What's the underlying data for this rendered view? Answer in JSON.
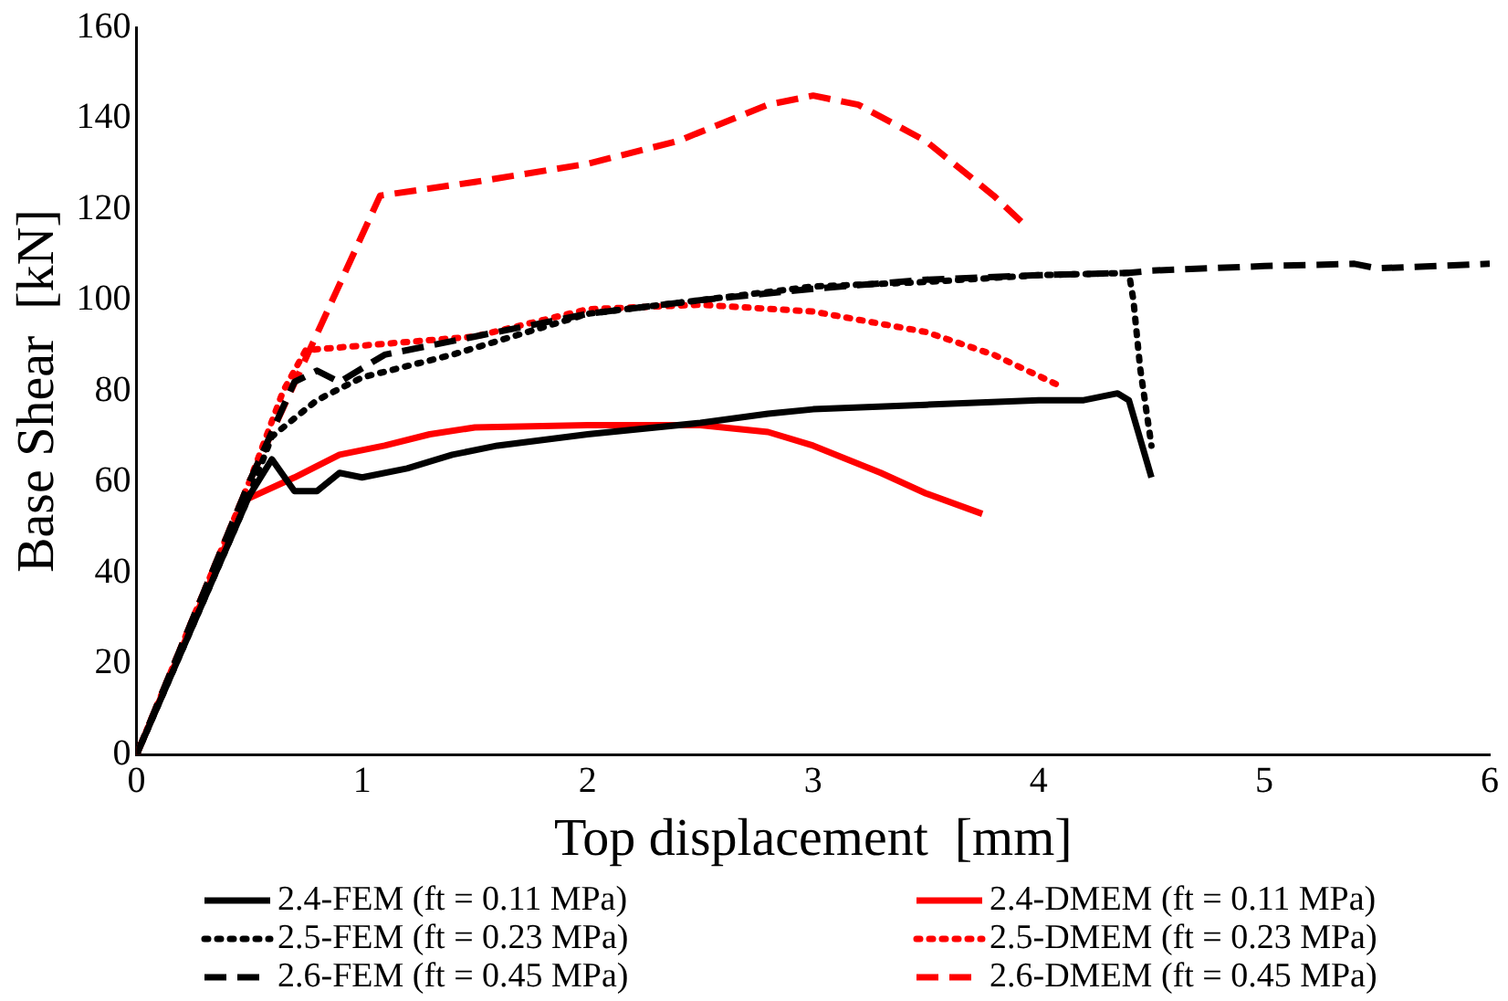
{
  "chart_data": {
    "type": "line",
    "xlabel": "Top displacement  [mm]",
    "ylabel": "Base Shear  [kN]",
    "xlim": [
      0,
      6
    ],
    "xticks": [
      0,
      1,
      2,
      3,
      4,
      5,
      6
    ],
    "ylim": [
      0,
      160
    ],
    "yticks": [
      0,
      20,
      40,
      60,
      80,
      100,
      120,
      140,
      160
    ],
    "legend": "bottom",
    "marker": "none",
    "series": [
      {
        "name": "2.4-FEM (ft = 0.11 MPa)",
        "color": "#000000",
        "line_style": "solid",
        "x": [
          0,
          0.5,
          0.6,
          0.7,
          0.8,
          0.9,
          1.0,
          1.2,
          1.4,
          1.6,
          2.0,
          2.5,
          2.8,
          3.0,
          3.5,
          4.0,
          4.2,
          4.35,
          4.4,
          4.5
        ],
        "values": [
          0,
          57,
          65,
          58,
          58,
          62,
          61,
          63,
          66,
          68,
          70.5,
          73,
          75,
          76,
          77,
          78,
          78,
          79.5,
          78,
          61
        ]
      },
      {
        "name": "2.5-FEM (ft = 0.23 MPa)",
        "color": "#000000",
        "line_style": "dotted",
        "x": [
          0,
          0.5,
          0.6,
          0.8,
          1.0,
          1.4,
          2.0,
          2.5,
          3.0,
          3.5,
          4.0,
          4.4,
          4.42,
          4.45,
          4.5
        ],
        "values": [
          0,
          57,
          70,
          78,
          83,
          88,
          97,
          100,
          103,
          104,
          105.5,
          106,
          100,
          85,
          68
        ]
      },
      {
        "name": "2.6-FEM (ft = 0.45 MPa)",
        "color": "#000000",
        "line_style": "dashed",
        "x": [
          0,
          0.5,
          0.7,
          0.8,
          0.9,
          1.1,
          1.5,
          2.0,
          2.5,
          3.0,
          3.5,
          4.0,
          4.4,
          4.5,
          5.0,
          5.4,
          5.5,
          6.0
        ],
        "values": [
          0,
          60,
          82,
          84.5,
          82,
          88,
          92,
          97,
          100,
          102.5,
          104.5,
          105.5,
          106,
          106.5,
          107.5,
          108,
          107,
          108
        ]
      },
      {
        "name": "2.4-DMEM (ft = 0.11 MPa)",
        "color": "#ff0000",
        "line_style": "solid",
        "x": [
          0,
          0.48,
          0.7,
          0.9,
          1.1,
          1.3,
          1.5,
          2.0,
          2.5,
          2.8,
          3.0,
          3.3,
          3.5,
          3.75
        ],
        "values": [
          0,
          56,
          61,
          66,
          68,
          70.5,
          72,
          72.5,
          72.5,
          71,
          68,
          62,
          57.5,
          53
        ]
      },
      {
        "name": "2.5-DMEM (ft = 0.23 MPa)",
        "color": "#ff0000",
        "line_style": "dotted",
        "x": [
          0,
          0.5,
          0.65,
          0.75,
          1.0,
          1.5,
          2.0,
          2.5,
          3.0,
          3.5,
          3.8,
          4.1
        ],
        "values": [
          0,
          60,
          80,
          89,
          90,
          92,
          98,
          99,
          97.5,
          93,
          88,
          81
        ]
      },
      {
        "name": "2.6-DMEM (ft = 0.45 MPa)",
        "color": "#ff0000",
        "line_style": "dashed",
        "x": [
          0,
          0.5,
          1.08,
          1.5,
          2.0,
          2.4,
          2.8,
          3.0,
          3.2,
          3.5,
          3.8,
          3.95
        ],
        "values": [
          0,
          60,
          123,
          126,
          130,
          135,
          143,
          145,
          143,
          135,
          123,
          116
        ]
      }
    ]
  }
}
